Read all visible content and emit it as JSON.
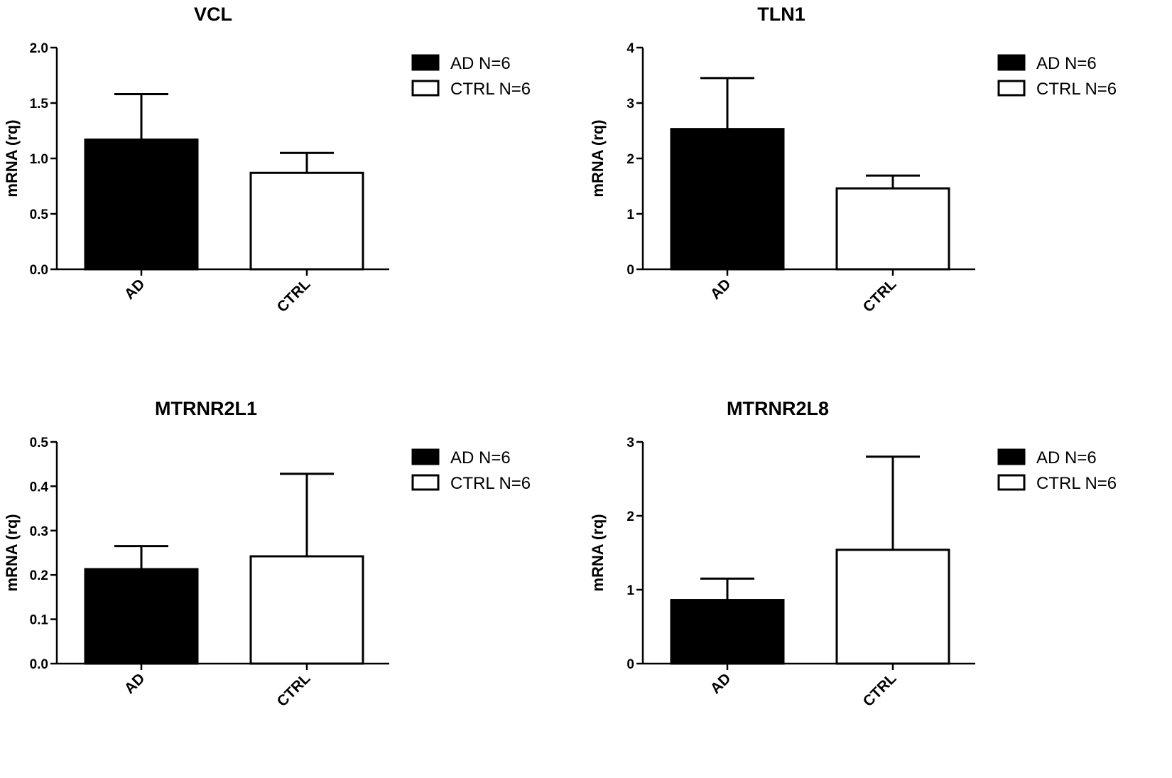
{
  "chart_data": [
    {
      "type": "bar",
      "title": "VCL",
      "xlabel": "",
      "ylabel": "mRNA (rq)",
      "categories": [
        "AD",
        "CTRL"
      ],
      "values": [
        1.17,
        0.87
      ],
      "errors": [
        0.41,
        0.18
      ],
      "ylim": [
        0,
        2.0
      ],
      "yticks": [
        "0.0",
        "0.5",
        "1.0",
        "1.5",
        "2.0"
      ],
      "legend": [
        "AD N=6",
        "CTRL N=6"
      ],
      "colors": [
        "#000000",
        "#ffffff"
      ]
    },
    {
      "type": "bar",
      "title": "TLN1",
      "xlabel": "",
      "ylabel": "mRNA (rq)",
      "categories": [
        "AD",
        "CTRL"
      ],
      "values": [
        2.53,
        1.46
      ],
      "errors": [
        0.92,
        0.23
      ],
      "ylim": [
        0,
        4
      ],
      "yticks": [
        "0",
        "1",
        "2",
        "3",
        "4"
      ],
      "legend": [
        "AD N=6",
        "CTRL N=6"
      ],
      "colors": [
        "#000000",
        "#ffffff"
      ]
    },
    {
      "type": "bar",
      "title": "MTRNR2L1",
      "xlabel": "",
      "ylabel": "mRNA (rq)",
      "categories": [
        "AD",
        "CTRL"
      ],
      "values": [
        0.213,
        0.242
      ],
      "errors": [
        0.052,
        0.186
      ],
      "ylim": [
        0,
        0.5
      ],
      "yticks": [
        "0.0",
        "0.1",
        "0.2",
        "0.3",
        "0.4",
        "0.5"
      ],
      "legend": [
        "AD N=6",
        "CTRL N=6"
      ],
      "colors": [
        "#000000",
        "#ffffff"
      ]
    },
    {
      "type": "bar",
      "title": "MTRNR2L8",
      "xlabel": "",
      "ylabel": "mRNA (rq)",
      "categories": [
        "AD",
        "CTRL"
      ],
      "values": [
        0.86,
        1.54
      ],
      "errors": [
        0.29,
        1.26
      ],
      "ylim": [
        0,
        3
      ],
      "yticks": [
        "0",
        "1",
        "2",
        "3"
      ],
      "legend": [
        "AD N=6",
        "CTRL N=6"
      ],
      "colors": [
        "#000000",
        "#ffffff"
      ]
    }
  ]
}
